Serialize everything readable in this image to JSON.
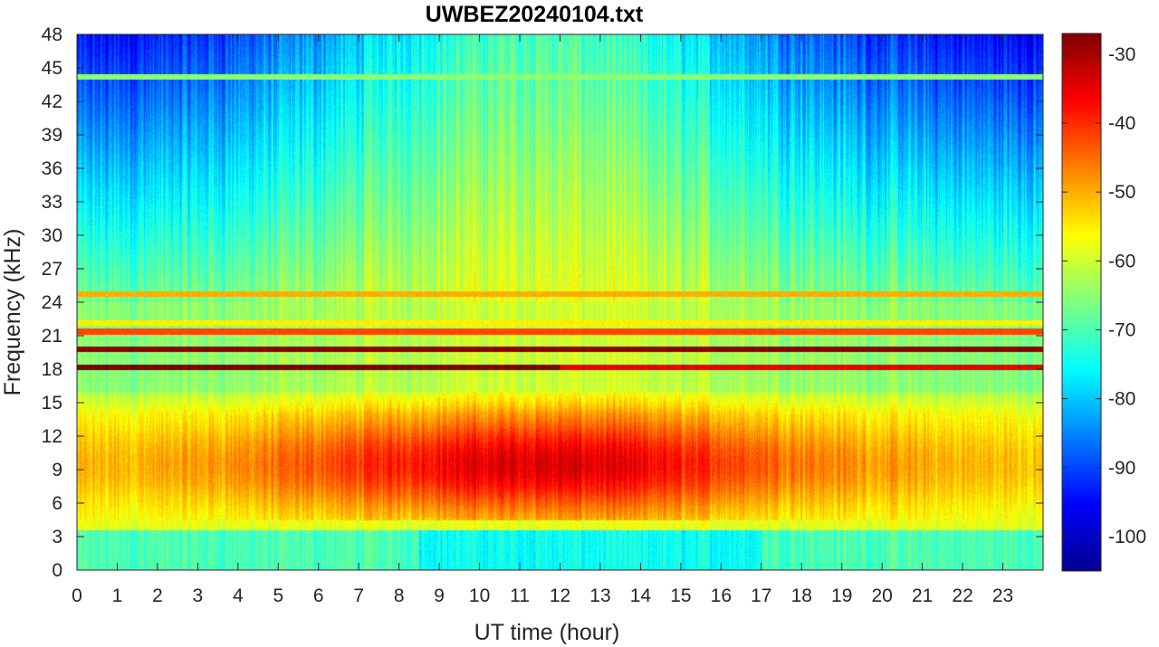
{
  "chart_data": {
    "type": "heatmap",
    "title": "UWBEZ20240104.txt",
    "xlabel": "UT time (hour)",
    "ylabel": "Frequency (kHz)",
    "xlim": [
      0,
      24
    ],
    "ylim": [
      0,
      48
    ],
    "x_ticks": [
      0,
      1,
      2,
      3,
      4,
      5,
      6,
      7,
      8,
      9,
      10,
      11,
      12,
      13,
      14,
      15,
      16,
      17,
      18,
      19,
      20,
      21,
      22,
      23
    ],
    "y_ticks": [
      0,
      3,
      6,
      9,
      12,
      15,
      18,
      21,
      24,
      27,
      30,
      33,
      36,
      39,
      42,
      45,
      48
    ],
    "colorbar": {
      "colormap": "jet",
      "range": [
        -105,
        -27
      ],
      "ticks": [
        -30,
        -40,
        -50,
        -60,
        -70,
        -80,
        -90,
        -100
      ]
    },
    "grid": false,
    "description_bands": [
      {
        "freq_khz": 19.8,
        "level": -28
      },
      {
        "freq_khz": 18.2,
        "level": -35
      },
      {
        "freq_khz": 21.4,
        "level": -42
      },
      {
        "freq_khz": 24.8,
        "level": -50
      },
      {
        "freq_khz": 22.2,
        "level": -55
      },
      {
        "freq_khz": 44.2,
        "level": -65
      },
      {
        "freq_khz": 4.0,
        "level": -62
      }
    ]
  }
}
